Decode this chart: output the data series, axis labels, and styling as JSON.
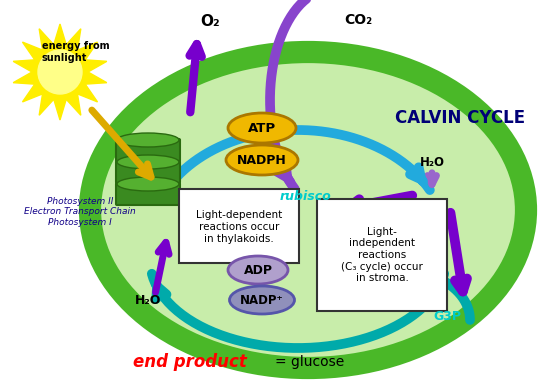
{
  "bg_color": "#ffffff",
  "cell_inner_color": "#c8edaa",
  "cell_border_color": "#2a8a10",
  "cell_ring_color": "#4ab828",
  "sun_color": "#ffee00",
  "sun_ray_color": "#ffcc00",
  "atp_color": "#f0b800",
  "nadph_color": "#f0b800",
  "adp_color": "#b0a0cc",
  "nadp_color": "#9090bb",
  "box_color": "#ffffff",
  "arrow_purple": "#7700cc",
  "arrow_purple2": "#8844cc",
  "arrow_blue": "#22aadd",
  "arrow_teal": "#00aaaa",
  "green_cyl_dark": "#2a6a10",
  "green_cyl_mid": "#3a8a20",
  "green_cyl_light": "#55b030",
  "rubisco_color": "#00cccc",
  "text_dark_blue": "#110088",
  "end_product_red": "#ff0000",
  "calvin_color": "#000077",
  "labels": {
    "energy_from_sunlight": "energy from\nsunlight",
    "o2": "O₂",
    "co2": "CO₂",
    "calvin_cycle": "CALVIN CYCLE",
    "atp": "ATP",
    "nadph": "NADPH",
    "adp": "ADP",
    "nadp_plus": "NADP⁺",
    "h2o_top": "H₂O",
    "h2o_bottom": "H₂O",
    "rubisco": "rubisco",
    "g3p": "G3P",
    "photosystem": "Photosystem II\nElectron Transport Chain\nPhotosystem I",
    "light_dependent": "Light-dependent\nreactions occur\nin thylakoids.",
    "light_independent": "Light-\nindependent\nreactions\n(C₃ cycle) occur\nin stroma.",
    "end_product": "end product",
    "equals_glucose": "= glucose"
  }
}
